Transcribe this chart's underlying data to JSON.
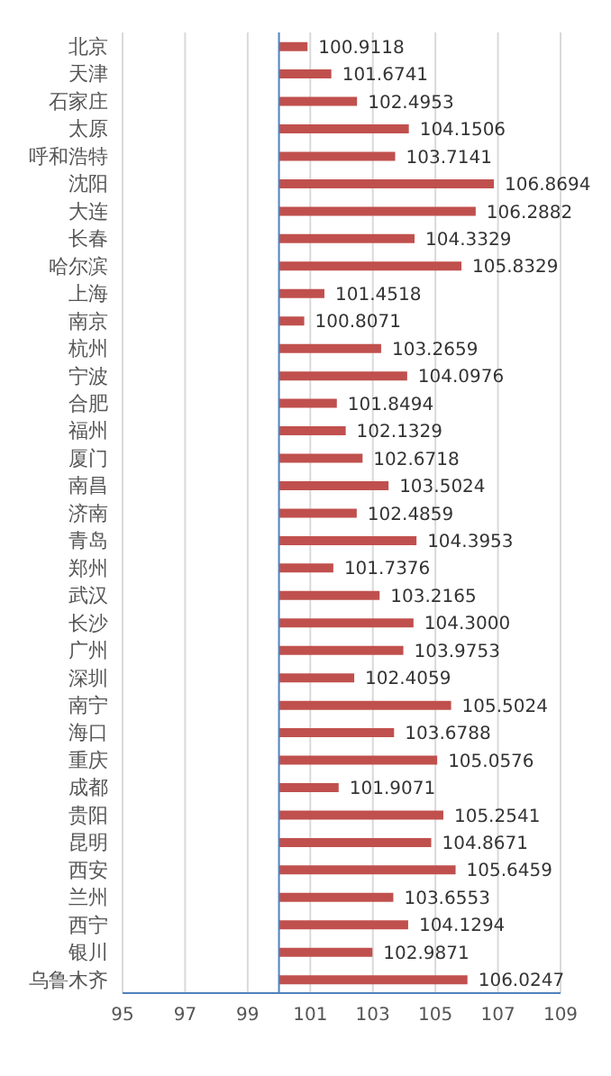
{
  "chart_data": {
    "type": "bar",
    "orientation": "horizontal",
    "categories": [
      "北京",
      "天津",
      "石家庄",
      "太原",
      "呼和浩特",
      "沈阳",
      "大连",
      "长春",
      "哈尔滨",
      "上海",
      "南京",
      "杭州",
      "宁波",
      "合肥",
      "福州",
      "厦门",
      "南昌",
      "济南",
      "青岛",
      "郑州",
      "武汉",
      "长沙",
      "广州",
      "深圳",
      "南宁",
      "海口",
      "重庆",
      "成都",
      "贵阳",
      "昆明",
      "西安",
      "兰州",
      "西宁",
      "银川",
      "乌鲁木齐"
    ],
    "base": [
      100,
      100,
      100,
      100,
      100,
      100,
      100,
      100,
      100,
      100,
      100,
      100,
      100,
      100,
      100,
      100,
      100,
      100,
      100,
      100,
      100,
      100,
      100,
      100,
      100,
      100,
      100,
      100,
      100,
      100,
      100,
      100,
      100,
      100,
      100
    ],
    "values": [
      0.9118,
      1.6741,
      2.4953,
      4.1506,
      3.7141,
      6.8694,
      6.2882,
      4.3329,
      5.8329,
      1.4518,
      0.8071,
      3.2659,
      4.0976,
      1.8494,
      2.1329,
      2.6718,
      3.5024,
      2.4859,
      4.3953,
      1.7376,
      3.2165,
      4.3,
      3.9753,
      2.4059,
      5.5024,
      3.6788,
      5.0576,
      1.9071,
      5.2541,
      4.8671,
      5.6459,
      3.6553,
      4.1294,
      2.9871,
      6.0247
    ],
    "value_labels": [
      "100.9118",
      "101.6741",
      "102.4953",
      "104.1506",
      "103.7141",
      "106.8694",
      "106.2882",
      "104.3329",
      "105.8329",
      "101.4518",
      "100.8071",
      "103.2659",
      "104.0976",
      "101.8494",
      "102.1329",
      "102.6718",
      "103.5024",
      "102.4859",
      "104.3953",
      "101.7376",
      "103.2165",
      "104.3000",
      "103.9753",
      "102.4059",
      "105.5024",
      "103.6788",
      "105.0576",
      "101.9071",
      "105.2541",
      "104.8671",
      "105.6459",
      "103.6553",
      "104.1294",
      "102.9871",
      "106.0247"
    ],
    "color": "#c0504d",
    "xlim": [
      95,
      109
    ],
    "xticks": [
      95,
      97,
      99,
      101,
      103,
      105,
      107,
      109
    ],
    "grid": "x",
    "ref_lines": [
      {
        "axis": "x",
        "value": 100,
        "color": "#4f81bd"
      }
    ]
  }
}
